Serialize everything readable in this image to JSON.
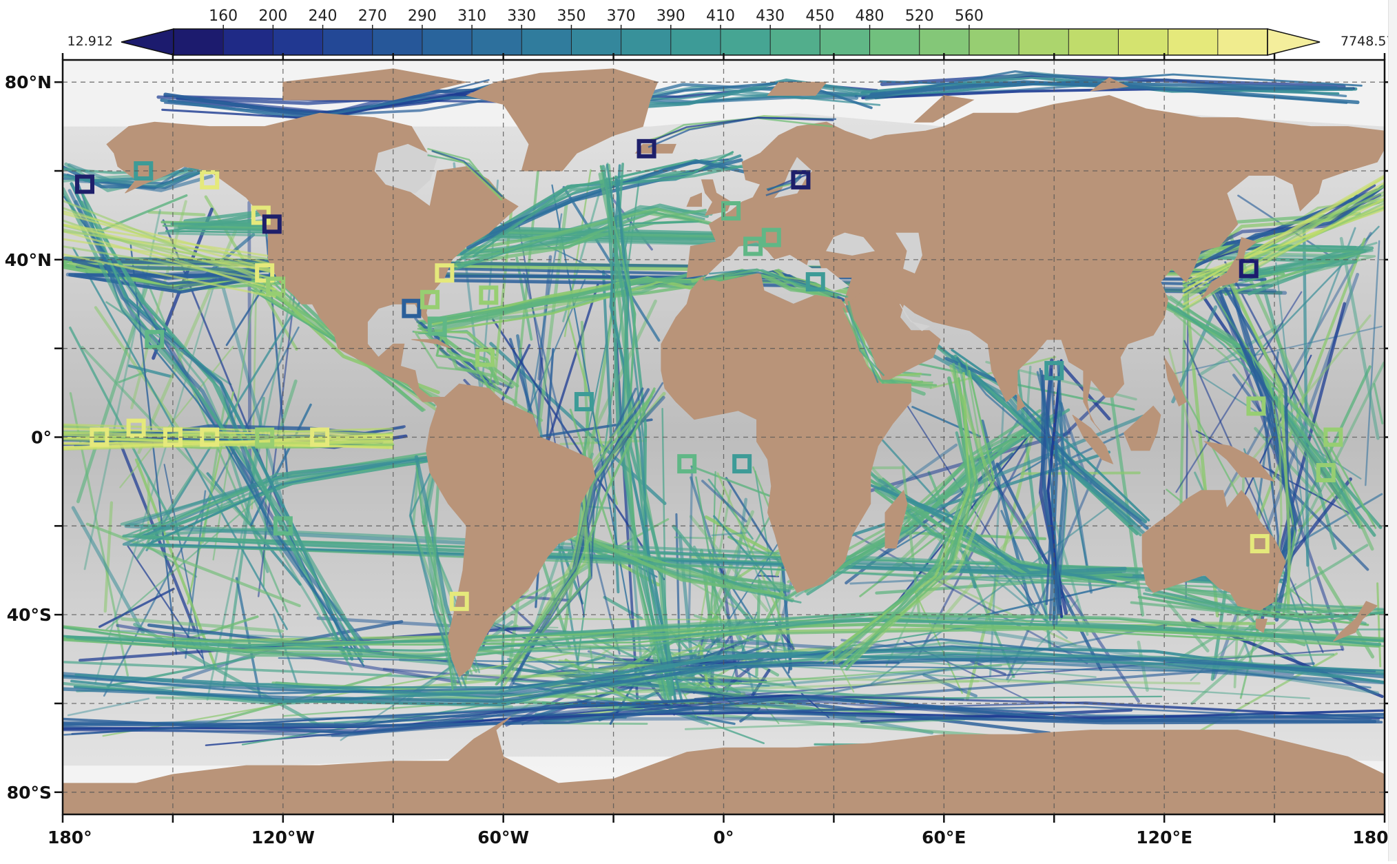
{
  "colorbar": {
    "min_label": "12.912",
    "max_label": "7748.57",
    "ticks": [
      "160",
      "200",
      "240",
      "270",
      "290",
      "310",
      "330",
      "350",
      "370",
      "390",
      "410",
      "430",
      "450",
      "480",
      "520",
      "560"
    ],
    "bins": [
      "#1c1b6e",
      "#1f2a86",
      "#213891",
      "#234896",
      "#265799",
      "#29649c",
      "#2d709d",
      "#307c9d",
      "#34879c",
      "#38919a",
      "#3d9b97",
      "#46a593",
      "#52ae8c",
      "#60b786",
      "#71c07e",
      "#84c778",
      "#97ce72",
      "#acd56d",
      "#c0dc6b",
      "#d4e36f",
      "#e5e97b",
      "#f0ec8e"
    ],
    "extend_min_color": "#1c1b6e",
    "extend_max_color": "#f4ee9c"
  },
  "map": {
    "lon_labels": [
      "180°",
      "120°W",
      "60°W",
      "0°",
      "60°E",
      "120°E",
      "180°"
    ],
    "lat_labels": [
      "80°N",
      "40°N",
      "0°",
      "40°S",
      "80°S"
    ],
    "land_color": "#b99479",
    "ocean_color_light": "#e8e8e8",
    "ocean_color_dark": "#bdbdbd",
    "track_colors": [
      "#2d6f9d",
      "#3a8f98",
      "#4aa58c",
      "#5db37f",
      "#6fbd75",
      "#8ac86d",
      "#2a5f9a",
      "#1e3d93"
    ],
    "ship_tracks": [
      {
        "name": "north-pacific-east",
        "pts": [
          [
            150,
            35
          ],
          [
            -180,
            38
          ],
          [
            -150,
            35
          ],
          [
            -122,
            37
          ]
        ],
        "v": 4
      },
      {
        "name": "north-pacific-mid",
        "pts": [
          [
            140,
            34
          ],
          [
            175,
            42
          ],
          [
            -150,
            48
          ],
          [
            -125,
            49
          ]
        ],
        "v": 2
      },
      {
        "name": "north-pacific-panama",
        "pts": [
          [
            -125,
            35
          ],
          [
            -100,
            18
          ],
          [
            -80,
            8
          ]
        ],
        "v": 3
      },
      {
        "name": "transpacific-south",
        "pts": [
          [
            150,
            -33
          ],
          [
            -160,
            -22
          ],
          [
            -120,
            -10
          ],
          [
            -80,
            -5
          ]
        ],
        "v": 1
      },
      {
        "name": "equatorial-pacific",
        "pts": [
          [
            -180,
            0
          ],
          [
            -140,
            0
          ],
          [
            -110,
            0
          ],
          [
            -90,
            0
          ]
        ],
        "v": 5
      },
      {
        "name": "pacific-diagonal",
        "pts": [
          [
            -178,
            55
          ],
          [
            -160,
            30
          ],
          [
            -140,
            10
          ],
          [
            -120,
            -20
          ],
          [
            -100,
            -50
          ]
        ],
        "v": 0
      },
      {
        "name": "north-atlantic-a",
        "pts": [
          [
            -74,
            40
          ],
          [
            -45,
            45
          ],
          [
            -20,
            50
          ],
          [
            -5,
            50
          ]
        ],
        "v": 2
      },
      {
        "name": "north-atlantic-b",
        "pts": [
          [
            -70,
            42
          ],
          [
            -40,
            55
          ],
          [
            -10,
            60
          ],
          [
            5,
            62
          ]
        ],
        "v": 0
      },
      {
        "name": "north-atlantic-c",
        "pts": [
          [
            -80,
            25
          ],
          [
            -50,
            30
          ],
          [
            -20,
            35
          ],
          [
            -6,
            36
          ]
        ],
        "v": 3
      },
      {
        "name": "mid-atlantic",
        "pts": [
          [
            -30,
            60
          ],
          [
            -28,
            30
          ],
          [
            -25,
            0
          ],
          [
            -20,
            -30
          ],
          [
            -15,
            -60
          ]
        ],
        "v": 1
      },
      {
        "name": "south-atlantic-cape",
        "pts": [
          [
            -40,
            -25
          ],
          [
            -10,
            -30
          ],
          [
            18,
            -35
          ]
        ],
        "v": 2
      },
      {
        "name": "atlantic-southwest",
        "pts": [
          [
            -20,
            10
          ],
          [
            -35,
            -10
          ],
          [
            -40,
            -30
          ],
          [
            -60,
            -55
          ]
        ],
        "v": 4
      },
      {
        "name": "southern-ocean-1",
        "pts": [
          [
            -180,
            -55
          ],
          [
            -120,
            -58
          ],
          [
            -60,
            -58
          ],
          [
            0,
            -50
          ],
          [
            60,
            -48
          ],
          [
            120,
            -50
          ],
          [
            180,
            -55
          ]
        ],
        "v": 0
      },
      {
        "name": "southern-ocean-2",
        "pts": [
          [
            -180,
            -65
          ],
          [
            -100,
            -65
          ],
          [
            -40,
            -62
          ],
          [
            20,
            -60
          ],
          [
            100,
            -62
          ],
          [
            180,
            -62
          ]
        ],
        "v": 6
      },
      {
        "name": "southern-ocean-3",
        "pts": [
          [
            -180,
            -45
          ],
          [
            -130,
            -48
          ],
          [
            -80,
            -48
          ],
          [
            -20,
            -45
          ],
          [
            40,
            -42
          ],
          [
            110,
            -42
          ],
          [
            180,
            -45
          ]
        ],
        "v": 2
      },
      {
        "name": "indian-1",
        "pts": [
          [
            20,
            -35
          ],
          [
            50,
            -20
          ],
          [
            70,
            -5
          ],
          [
            90,
            5
          ]
        ],
        "v": 2
      },
      {
        "name": "indian-2",
        "pts": [
          [
            40,
            -10
          ],
          [
            60,
            -20
          ],
          [
            80,
            -30
          ],
          [
            110,
            -32
          ]
        ],
        "v": 1
      },
      {
        "name": "indian-3",
        "pts": [
          [
            60,
            20
          ],
          [
            75,
            10
          ],
          [
            95,
            -5
          ],
          [
            115,
            -20
          ]
        ],
        "v": 0
      },
      {
        "name": "indian-4",
        "pts": [
          [
            30,
            -50
          ],
          [
            60,
            -30
          ],
          [
            70,
            -10
          ],
          [
            65,
            15
          ]
        ],
        "v": 3
      },
      {
        "name": "indian-5",
        "pts": [
          [
            90,
            -40
          ],
          [
            90,
            -10
          ],
          [
            88,
            15
          ]
        ],
        "v": 6
      },
      {
        "name": "west-pacific-1",
        "pts": [
          [
            120,
            30
          ],
          [
            140,
            20
          ],
          [
            160,
            0
          ],
          [
            175,
            -20
          ]
        ],
        "v": 2
      },
      {
        "name": "west-pacific-2",
        "pts": [
          [
            135,
            35
          ],
          [
            150,
            10
          ],
          [
            155,
            -20
          ],
          [
            150,
            -40
          ]
        ],
        "v": 4
      },
      {
        "name": "west-pacific-3",
        "pts": [
          [
            125,
            40
          ],
          [
            145,
            45
          ],
          [
            165,
            50
          ],
          [
            180,
            55
          ]
        ],
        "v": 5
      },
      {
        "name": "arctic-atlantic",
        "pts": [
          [
            -40,
            75
          ],
          [
            -10,
            77
          ],
          [
            20,
            78
          ],
          [
            40,
            76
          ]
        ],
        "v": 7
      },
      {
        "name": "arctic-canada",
        "pts": [
          [
            -150,
            75
          ],
          [
            -110,
            74
          ],
          [
            -80,
            76
          ],
          [
            -60,
            78
          ]
        ],
        "v": 6
      },
      {
        "name": "arctic-russia",
        "pts": [
          [
            40,
            78
          ],
          [
            80,
            80
          ],
          [
            120,
            80
          ],
          [
            170,
            77
          ]
        ],
        "v": 7
      },
      {
        "name": "mediterranean",
        "pts": [
          [
            -5,
            36
          ],
          [
            10,
            38
          ],
          [
            20,
            35
          ],
          [
            33,
            32
          ]
        ],
        "v": 4
      },
      {
        "name": "red-sea",
        "pts": [
          [
            33,
            30
          ],
          [
            38,
            20
          ],
          [
            43,
            13
          ],
          [
            55,
            12
          ]
        ],
        "v": 3
      },
      {
        "name": "caribbean",
        "pts": [
          [
            -80,
            25
          ],
          [
            -75,
            18
          ],
          [
            -65,
            15
          ],
          [
            -60,
            10
          ]
        ],
        "v": 4
      },
      {
        "name": "bering",
        "pts": [
          [
            -180,
            60
          ],
          [
            -170,
            58
          ],
          [
            -155,
            58
          ],
          [
            -140,
            60
          ]
        ],
        "v": 0
      },
      {
        "name": "australia-nz",
        "pts": [
          [
            115,
            -35
          ],
          [
            140,
            -38
          ],
          [
            160,
            -40
          ],
          [
            178,
            -40
          ]
        ],
        "v": 2
      },
      {
        "name": "peru-chile",
        "pts": [
          [
            -80,
            -5
          ],
          [
            -82,
            -20
          ],
          [
            -75,
            -40
          ],
          [
            -70,
            -55
          ]
        ],
        "v": 1
      }
    ],
    "station_markers": [
      {
        "lon": -160,
        "lat": 2,
        "v": 5
      },
      {
        "lon": -150,
        "lat": 0,
        "v": 5
      },
      {
        "lon": -140,
        "lat": 0,
        "v": 5
      },
      {
        "lon": -125,
        "lat": 0,
        "v": 4
      },
      {
        "lon": -110,
        "lat": 0,
        "v": 5
      },
      {
        "lon": -170,
        "lat": 0,
        "v": 5
      },
      {
        "lon": -155,
        "lat": 22,
        "v": 3
      },
      {
        "lon": -158,
        "lat": 60,
        "v": 2
      },
      {
        "lon": -125,
        "lat": 37,
        "v": 5
      },
      {
        "lon": -122,
        "lat": 34,
        "v": 4
      },
      {
        "lon": -126,
        "lat": 50,
        "v": 5
      },
      {
        "lon": -140,
        "lat": 58,
        "v": 5
      },
      {
        "lon": -174,
        "lat": 57,
        "v": 7
      },
      {
        "lon": -123,
        "lat": 48,
        "v": 7
      },
      {
        "lon": -85,
        "lat": 29,
        "v": 1
      },
      {
        "lon": -76,
        "lat": 37,
        "v": 5
      },
      {
        "lon": -80,
        "lat": 31,
        "v": 4
      },
      {
        "lon": -64,
        "lat": 32,
        "v": 4
      },
      {
        "lon": -65,
        "lat": 18,
        "v": 4
      },
      {
        "lon": -78,
        "lat": 25,
        "v": 3
      },
      {
        "lon": -72,
        "lat": -37,
        "v": 5
      },
      {
        "lon": -21,
        "lat": 65,
        "v": 7
      },
      {
        "lon": 21,
        "lat": 58,
        "v": 7
      },
      {
        "lon": 2,
        "lat": 51,
        "v": 3
      },
      {
        "lon": 8,
        "lat": 43,
        "v": 3
      },
      {
        "lon": 13,
        "lat": 45,
        "v": 3
      },
      {
        "lon": 25,
        "lat": 35,
        "v": 2
      },
      {
        "lon": -10,
        "lat": -6,
        "v": 3
      },
      {
        "lon": 5,
        "lat": -6,
        "v": 2
      },
      {
        "lon": -38,
        "lat": 8,
        "v": 2
      },
      {
        "lon": 90,
        "lat": 15,
        "v": 2
      },
      {
        "lon": 143,
        "lat": 38,
        "v": 0
      },
      {
        "lon": 145,
        "lat": 7,
        "v": 4
      },
      {
        "lon": 166,
        "lat": 0,
        "v": 4
      },
      {
        "lon": 164,
        "lat": -8,
        "v": 4
      },
      {
        "lon": 146,
        "lat": -24,
        "v": 5
      },
      {
        "lon": -120,
        "lat": -20,
        "v": 3
      }
    ]
  }
}
